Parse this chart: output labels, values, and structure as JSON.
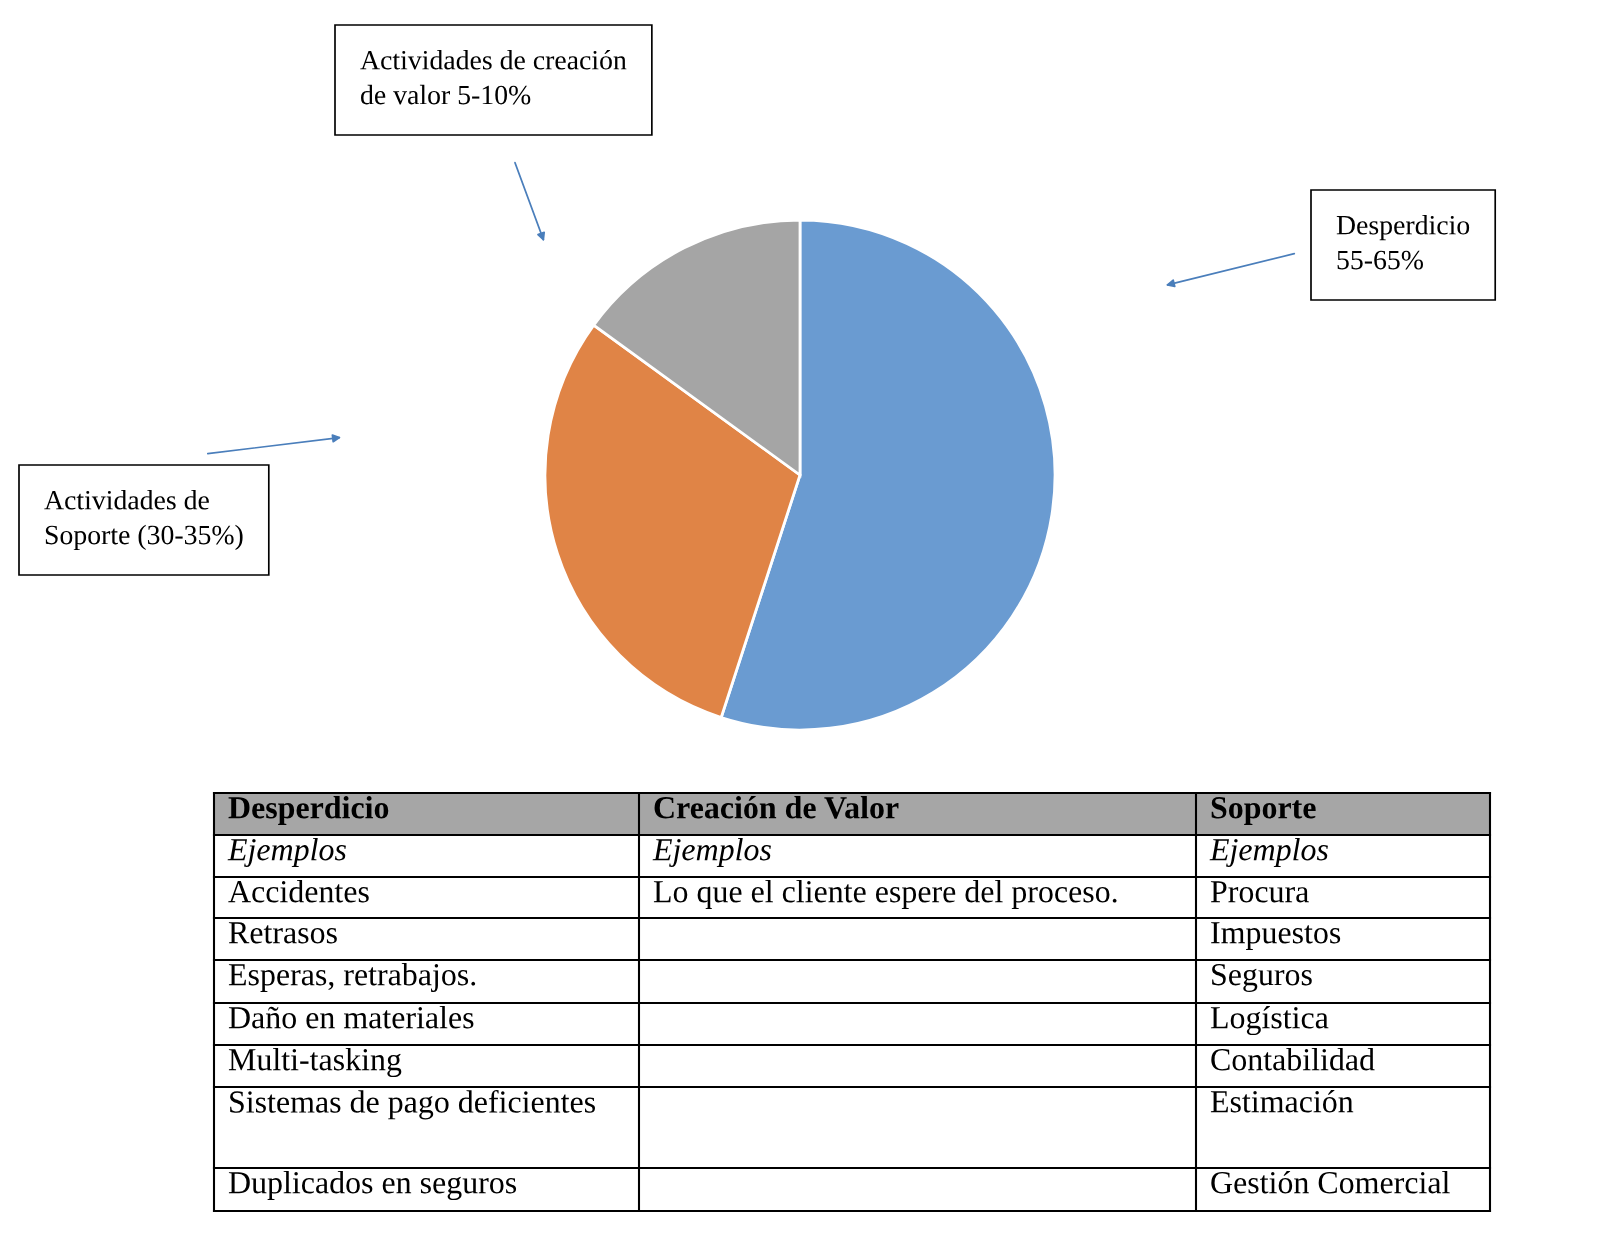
{
  "chart_data": {
    "type": "pie",
    "categories": [
      null,
      null,
      null
    ],
    "values": [
      55,
      30,
      15
    ],
    "colors": [
      "#6a9bd1",
      "#e08446",
      "#a5a5a5"
    ],
    "annotations": [
      "Actividades de creación\nde valor 5-10%",
      "Desperdicio\n55-65%",
      "Actividades de\nSoporte (30-35%)",
      "Desperdicio",
      "Ejemplos",
      "Accidentes",
      "Retrasos",
      "Esperas, retrabajos.",
      "Daño en materiales",
      "Multi-tasking",
      "Sistemas de pago deficientes",
      "Duplicados en seguros",
      "Creación de Valor",
      "Ejemplos",
      "Lo que el cliente espere del proceso.",
      "Soporte",
      "Ejemplos",
      "Procura",
      "Impuestos",
      "Seguros",
      "Logística",
      "Contabilidad",
      "Estimación",
      "Gestión Comercial"
    ]
  }
}
